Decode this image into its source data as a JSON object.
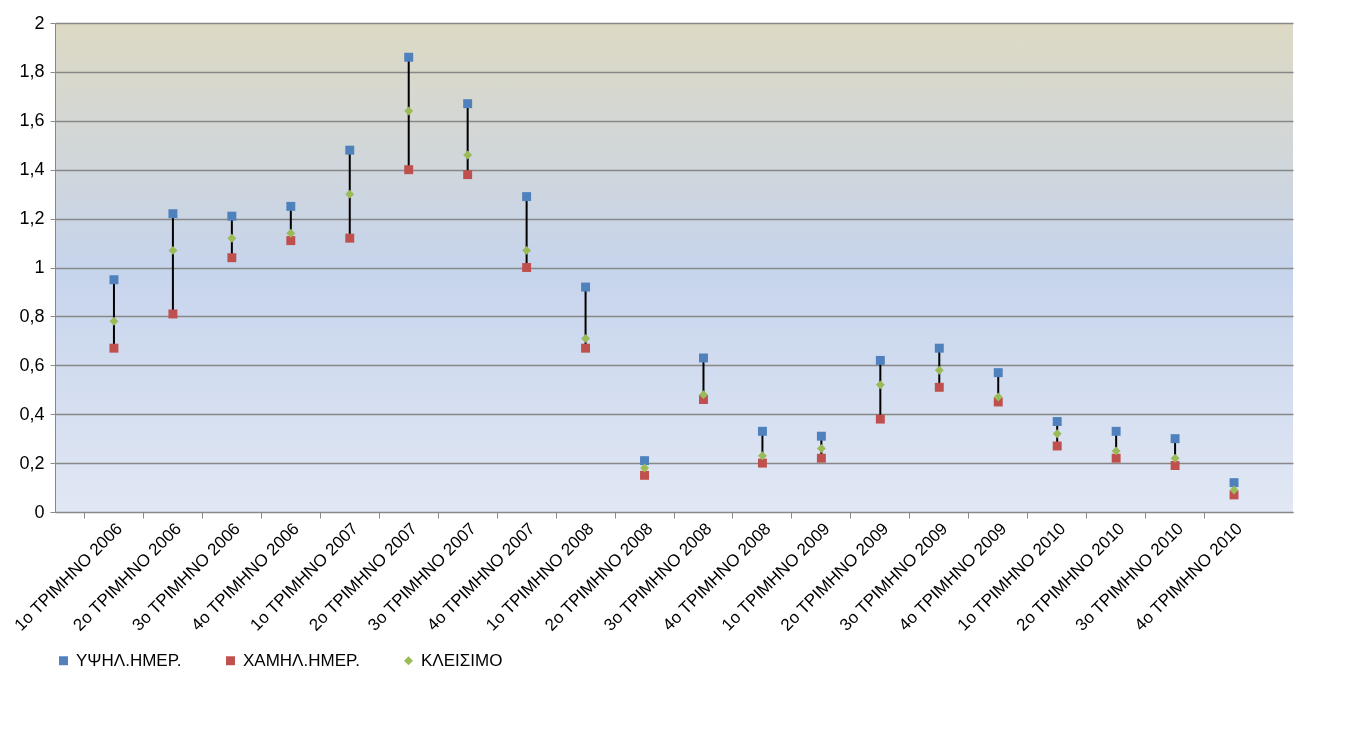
{
  "chart_data": {
    "type": "scatter",
    "categories": [
      "1ο ΤΡΙΜΗΝΟ 2006",
      "2ο ΤΡΙΜΗΝΟ 2006",
      "3ο ΤΡΙΜΗΝΟ 2006",
      "4ο ΤΡΙΜΗΝΟ 2006",
      "1ο ΤΡΙΜΗΝΟ 2007",
      "2ο ΤΡΙΜΗΝΟ 2007",
      "3ο ΤΡΙΜΗΝΟ 2007",
      "4ο ΤΡΙΜΗΝΟ 2007",
      "1ο ΤΡΙΜΗΝΟ 2008",
      "2ο ΤΡΙΜΗΝΟ 2008",
      "3ο ΤΡΙΜΗΝΟ 2008",
      "4ο ΤΡΙΜΗΝΟ 2008",
      "1ο ΤΡΙΜΗΝΟ 2009",
      "2ο ΤΡΙΜΗΝΟ 2009",
      "3ο ΤΡΙΜΗΝΟ 2009",
      "4ο ΤΡΙΜΗΝΟ 2009",
      "1ο ΤΡΙΜΗΝΟ 2010",
      "2ο ΤΡΙΜΗΝΟ 2010",
      "3ο ΤΡΙΜΗΝΟ 2010",
      "4ο ΤΡΙΜΗΝΟ 2010"
    ],
    "series": [
      {
        "name": "ΥΨΗΛ.ΗΜΕΡ.",
        "color": "#4f81bd",
        "marker": "square",
        "values": [
          0.95,
          1.22,
          1.21,
          1.25,
          1.48,
          1.86,
          1.67,
          1.29,
          0.92,
          0.21,
          0.63,
          0.33,
          0.31,
          0.62,
          0.67,
          0.57,
          0.37,
          0.33,
          0.3,
          0.12
        ]
      },
      {
        "name": "ΧΑΜΗΛ.ΗΜΕΡ.",
        "color": "#c0504d",
        "marker": "square",
        "values": [
          0.67,
          0.81,
          1.04,
          1.11,
          1.12,
          1.4,
          1.38,
          1.0,
          0.67,
          0.15,
          0.46,
          0.2,
          0.22,
          0.38,
          0.51,
          0.45,
          0.27,
          0.22,
          0.19,
          0.07
        ]
      },
      {
        "name": "ΚΛΕΙΣΙΜΟ",
        "color": "#9bbb59",
        "marker": "diamond",
        "values": [
          0.78,
          1.07,
          1.12,
          1.14,
          1.3,
          1.64,
          1.46,
          1.07,
          0.71,
          0.18,
          0.48,
          0.23,
          0.26,
          0.52,
          0.58,
          0.47,
          0.32,
          0.25,
          0.22,
          0.09
        ]
      }
    ],
    "ylim": [
      0,
      2
    ],
    "yticks": [
      0,
      {
        "value": 0.2,
        "label": "0,2"
      },
      {
        "value": 0.4,
        "label": "0,4"
      },
      {
        "value": 0.6,
        "label": "0,6"
      },
      {
        "value": 0.8,
        "label": "0,8"
      },
      1,
      {
        "value": 1.2,
        "label": "1,2"
      },
      {
        "value": 1.4,
        "label": "1,4"
      },
      {
        "value": 1.6,
        "label": "1,6"
      },
      {
        "value": 1.8,
        "label": "1,8"
      },
      2
    ],
    "grid": "y",
    "legend": "bottom"
  }
}
